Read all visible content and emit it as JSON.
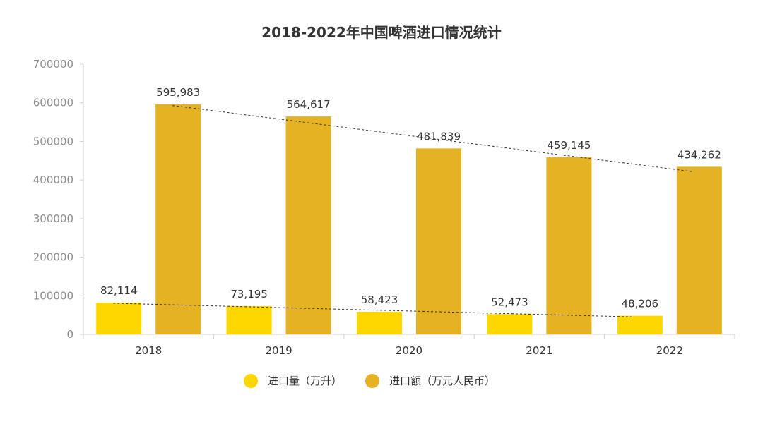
{
  "chart_data": {
    "type": "bar",
    "title": "2018-2022年中国啤酒进口情况统计",
    "categories": [
      "2018",
      "2019",
      "2020",
      "2021",
      "2022"
    ],
    "series": [
      {
        "name": "进口量（万升）",
        "values": [
          82114,
          73195,
          58423,
          52473,
          48206
        ],
        "labels": [
          "82,114",
          "73,195",
          "58,423",
          "52,473",
          "48,206"
        ],
        "color": "#FFD700"
      },
      {
        "name": "进口额（万元人民币）",
        "values": [
          595983,
          564617,
          481839,
          459145,
          434262
        ],
        "labels": [
          "595,983",
          "564,617",
          "481,839",
          "459,145",
          "434,262"
        ],
        "color": "#E5B223"
      }
    ],
    "ylim": [
      0,
      700000
    ],
    "yticks": [
      "0",
      "100000",
      "200000",
      "300000",
      "400000",
      "500000",
      "600000",
      "700000"
    ],
    "trendlines": true,
    "legend_position": "bottom",
    "grid": false
  }
}
